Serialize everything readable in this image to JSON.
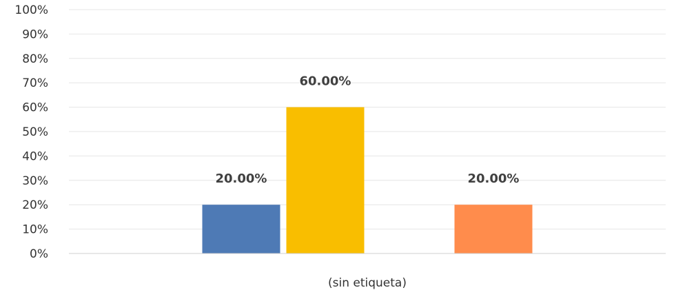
{
  "chart_data": {
    "type": "bar",
    "categories": [
      "(sin etiqueta)"
    ],
    "series": [
      {
        "values": [
          20.0
        ],
        "color": "#4e7ab5",
        "label": "20.00%"
      },
      {
        "values": [
          60.0
        ],
        "color": "#f9be00",
        "label": "60.00%"
      },
      {
        "values": [
          0.0
        ],
        "color": "#a5a5a5",
        "label": ""
      },
      {
        "values": [
          20.0
        ],
        "color": "#ff8c4c",
        "label": "20.00%"
      }
    ],
    "y_ticks": [
      "0%",
      "10%",
      "20%",
      "30%",
      "40%",
      "50%",
      "60%",
      "70%",
      "80%",
      "90%",
      "100%"
    ],
    "ylim": [
      0,
      100
    ],
    "grid": true,
    "legend": "none"
  }
}
